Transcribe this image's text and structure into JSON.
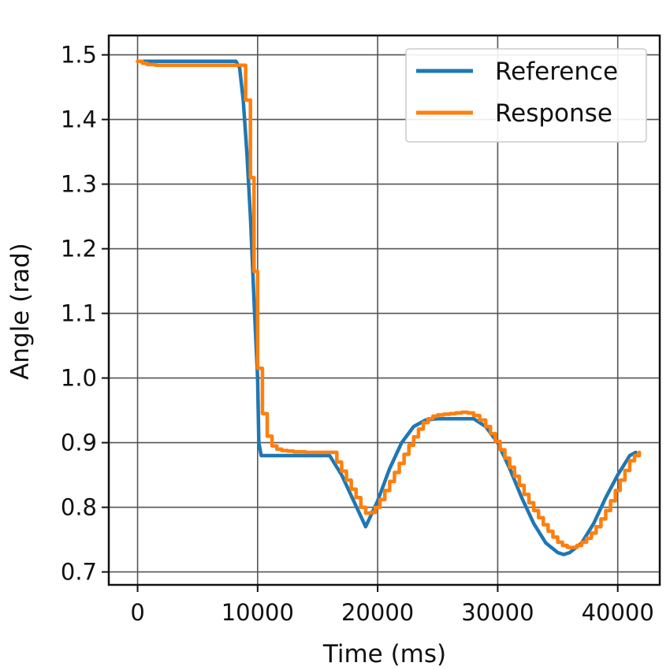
{
  "chart_data": {
    "type": "line",
    "xlabel": "Time (ms)",
    "ylabel": "Angle (rad)",
    "xlim": [
      -2400,
      43500
    ],
    "ylim": [
      0.68,
      1.53
    ],
    "xticks": [
      0,
      10000,
      20000,
      30000,
      40000
    ],
    "xtick_labels": [
      "0",
      "10000",
      "20000",
      "30000",
      "40000"
    ],
    "yticks": [
      0.7,
      0.8,
      0.9,
      1.0,
      1.1,
      1.2,
      1.3,
      1.4,
      1.5
    ],
    "ytick_labels": [
      "0.7",
      "0.8",
      "0.9",
      "1.0",
      "1.1",
      "1.2",
      "1.3",
      "1.4",
      "1.5"
    ],
    "grid": true,
    "legend_position": "upper right",
    "series": [
      {
        "name": "Reference",
        "color": "#1f77b4",
        "style": "smooth",
        "x": [
          0,
          400,
          800,
          1500,
          3000,
          5000,
          7000,
          8200,
          8500,
          8800,
          9100,
          9400,
          9700,
          10000,
          10100,
          10300,
          12000,
          14000,
          16000,
          17000,
          18000,
          19000,
          19500,
          20000,
          21000,
          22000,
          23000,
          24000,
          25000,
          26000,
          27000,
          28000,
          29000,
          30000,
          31000,
          32000,
          33000,
          34000,
          35000,
          35500,
          36000,
          37000,
          38000,
          39000,
          40000,
          41000,
          41500
        ],
        "y": [
          1.49,
          1.49,
          1.49,
          1.49,
          1.49,
          1.49,
          1.49,
          1.49,
          1.48,
          1.43,
          1.35,
          1.25,
          1.12,
          1.0,
          0.9,
          0.88,
          0.88,
          0.88,
          0.88,
          0.85,
          0.81,
          0.77,
          0.79,
          0.81,
          0.86,
          0.9,
          0.925,
          0.935,
          0.937,
          0.937,
          0.937,
          0.937,
          0.925,
          0.9,
          0.86,
          0.815,
          0.775,
          0.745,
          0.73,
          0.727,
          0.73,
          0.745,
          0.775,
          0.815,
          0.85,
          0.88,
          0.885
        ]
      },
      {
        "name": "Response",
        "color": "#ff7f0e",
        "style": "step",
        "x": [
          0,
          400,
          800,
          1500,
          3000,
          5000,
          7000,
          8500,
          9000,
          9400,
          9700,
          10000,
          10400,
          10800,
          11200,
          11600,
          12000,
          12500,
          13000,
          14000,
          15000,
          16000,
          16600,
          17000,
          17400,
          17800,
          18200,
          18600,
          19000,
          19400,
          19800,
          20200,
          20600,
          21000,
          21400,
          21800,
          22200,
          22600,
          23000,
          23400,
          23800,
          24200,
          24600,
          25000,
          25500,
          26000,
          26500,
          27000,
          27500,
          28000,
          28500,
          29000,
          29400,
          29800,
          30200,
          30600,
          31000,
          31400,
          31800,
          32200,
          32600,
          33000,
          33400,
          33800,
          34200,
          34600,
          35000,
          35400,
          35800,
          36200,
          36600,
          37000,
          37400,
          37800,
          38200,
          38600,
          39000,
          39400,
          39800,
          40200,
          40600,
          41000,
          41400,
          41800
        ],
        "y": [
          1.49,
          1.487,
          1.485,
          1.484,
          1.484,
          1.484,
          1.484,
          1.484,
          1.43,
          1.31,
          1.165,
          1.015,
          0.945,
          0.91,
          0.895,
          0.89,
          0.888,
          0.887,
          0.886,
          0.885,
          0.885,
          0.885,
          0.87,
          0.856,
          0.842,
          0.828,
          0.815,
          0.8,
          0.791,
          0.792,
          0.8,
          0.812,
          0.826,
          0.84,
          0.854,
          0.868,
          0.882,
          0.896,
          0.909,
          0.921,
          0.931,
          0.937,
          0.941,
          0.943,
          0.944,
          0.945,
          0.946,
          0.947,
          0.946,
          0.942,
          0.935,
          0.925,
          0.914,
          0.902,
          0.889,
          0.876,
          0.862,
          0.848,
          0.834,
          0.82,
          0.807,
          0.795,
          0.784,
          0.773,
          0.763,
          0.754,
          0.746,
          0.741,
          0.738,
          0.738,
          0.741,
          0.746,
          0.752,
          0.76,
          0.77,
          0.782,
          0.795,
          0.81,
          0.826,
          0.842,
          0.857,
          0.872,
          0.88,
          0.885
        ]
      }
    ]
  }
}
